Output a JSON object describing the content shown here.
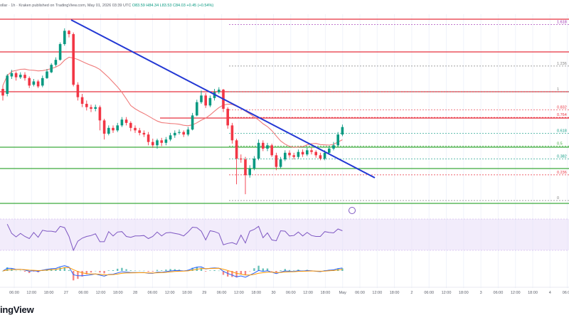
{
  "header": {
    "symbol_fragment": "ollar",
    "sep1": "· 1h ·",
    "exchange": "Kraken",
    "published": "published on TradingView.com, May 01, 2026 03:39 UTC",
    "ohlc": "O83.59 H84.34 L83.53 C84.03 +0.45 (+0.54%)"
  },
  "brand": {
    "logo_text": "ingView"
  },
  "colors": {
    "up": "#089981",
    "down": "#f23645",
    "trendline": "#2338d4",
    "resistance": "#e8313f",
    "support": "#3cab3c",
    "ma": "#ef7a7a",
    "rsi": "#7e57c2",
    "rsi_band": "#e8dcf7",
    "macd": "#2962ff",
    "signal": "#ff9800"
  },
  "fib_levels": [
    {
      "label": "1.618",
      "value": 1.618,
      "color": "#9c27b0"
    },
    {
      "label": "1.236",
      "value": 1.236,
      "color": "#808080"
    },
    {
      "label": "1",
      "value": 1,
      "color": "#808080"
    },
    {
      "label": "0.832",
      "value": 0.832,
      "color": "#e8313f"
    },
    {
      "label": "0.764",
      "value": 0.764,
      "color": "#e8313f"
    },
    {
      "label": "0.618",
      "value": 0.618,
      "color": "#089981"
    },
    {
      "label": "0.5",
      "value": 0.5,
      "color": "#3cab3c"
    },
    {
      "label": "0.382",
      "value": 0.382,
      "color": "#089981"
    },
    {
      "label": "0.236",
      "value": 0.236,
      "color": "#e8313f"
    },
    {
      "label": "0",
      "value": 0,
      "color": "#808080"
    }
  ],
  "time_axis": [
    "06:00",
    "12:00",
    "18:00",
    "27",
    "06:00",
    "12:00",
    "18:00",
    "28",
    "06:00",
    "12:00",
    "18:00",
    "29",
    "06:00",
    "12:00",
    "18:00",
    "30",
    "06:00",
    "12:00",
    "18:00",
    "May",
    "06:00",
    "12:00",
    "18:00",
    "2",
    "06:00",
    "12:00",
    "18:00",
    "3",
    "06:00",
    "12:00",
    "18:00",
    "4",
    "06:00"
  ],
  "chart_data": {
    "type": "candlestick",
    "candles": [
      [
        79.0,
        78.2,
        79.4,
        77.6
      ],
      [
        78.4,
        80.6,
        80.8,
        78.1
      ],
      [
        80.5,
        80.9,
        81.3,
        80.2
      ],
      [
        80.9,
        80.4,
        81.1,
        80.0
      ],
      [
        80.4,
        80.7,
        81.0,
        80.2
      ],
      [
        80.7,
        80.3,
        81.0,
        80.0
      ],
      [
        80.3,
        79.4,
        80.5,
        79.1
      ],
      [
        79.5,
        79.9,
        80.2,
        79.3
      ],
      [
        79.9,
        79.3,
        80.1,
        79.1
      ],
      [
        79.4,
        80.3,
        80.6,
        79.2
      ],
      [
        80.3,
        81.1,
        81.4,
        80.2
      ],
      [
        81.0,
        81.9,
        82.1,
        80.9
      ],
      [
        81.9,
        82.5,
        82.8,
        81.7
      ],
      [
        82.5,
        84.4,
        84.6,
        82.4
      ],
      [
        84.4,
        86.0,
        86.3,
        84.2
      ],
      [
        86.0,
        85.6,
        86.1,
        85.2
      ],
      [
        85.6,
        79.5,
        85.8,
        79.3
      ],
      [
        79.5,
        78.0,
        79.8,
        77.6
      ],
      [
        78.0,
        77.2,
        78.4,
        76.8
      ],
      [
        77.2,
        76.8,
        77.6,
        76.4
      ],
      [
        76.8,
        76.6,
        77.1,
        76.2
      ],
      [
        76.6,
        76.8,
        77.1,
        76.3
      ],
      [
        76.8,
        75.2,
        77.0,
        74.0
      ],
      [
        75.2,
        73.6,
        75.4,
        72.9
      ],
      [
        73.6,
        74.3,
        74.6,
        73.4
      ],
      [
        74.3,
        74.0,
        74.6,
        73.7
      ],
      [
        74.0,
        74.6,
        74.9,
        73.8
      ],
      [
        74.6,
        75.3,
        75.6,
        74.4
      ],
      [
        75.3,
        74.9,
        75.6,
        74.6
      ],
      [
        74.9,
        74.3,
        75.1,
        73.9
      ],
      [
        74.3,
        74.0,
        74.6,
        73.7
      ],
      [
        74.0,
        73.7,
        74.3,
        73.4
      ],
      [
        73.7,
        73.5,
        74.0,
        73.2
      ],
      [
        73.5,
        72.6,
        73.8,
        72.2
      ],
      [
        72.6,
        72.2,
        73.0,
        71.9
      ],
      [
        72.2,
        72.8,
        73.0,
        71.8
      ],
      [
        72.8,
        72.5,
        73.1,
        72.1
      ],
      [
        72.5,
        72.9,
        73.2,
        72.2
      ],
      [
        72.9,
        73.4,
        73.7,
        72.7
      ],
      [
        73.4,
        73.7,
        74.0,
        73.1
      ],
      [
        73.7,
        73.8,
        74.1,
        73.5
      ],
      [
        73.8,
        73.5,
        74.0,
        73.2
      ],
      [
        73.5,
        74.1,
        74.4,
        73.3
      ],
      [
        74.1,
        75.8,
        76.1,
        74.0
      ],
      [
        75.8,
        77.4,
        77.7,
        75.7
      ],
      [
        77.4,
        78.2,
        78.8,
        77.2
      ],
      [
        78.2,
        77.0,
        78.5,
        76.7
      ],
      [
        77.0,
        77.9,
        78.2,
        76.8
      ],
      [
        77.9,
        78.6,
        79.0,
        77.6
      ],
      [
        78.6,
        78.9,
        79.2,
        78.4
      ],
      [
        78.9,
        76.6,
        79.0,
        76.2
      ],
      [
        76.6,
        74.6,
        76.8,
        74.2
      ],
      [
        74.6,
        72.8,
        74.9,
        72.4
      ],
      [
        72.8,
        70.6,
        73.0,
        67.5
      ],
      [
        70.6,
        70.5,
        71.1,
        70.1
      ],
      [
        70.5,
        68.6,
        70.8,
        66.3
      ],
      [
        68.6,
        69.4,
        69.8,
        68.3
      ],
      [
        69.4,
        70.6,
        70.9,
        69.2
      ],
      [
        70.6,
        72.5,
        72.9,
        70.4
      ],
      [
        72.5,
        71.8,
        72.8,
        71.5
      ],
      [
        71.8,
        72.2,
        72.5,
        71.5
      ],
      [
        72.2,
        71.0,
        72.4,
        70.8
      ],
      [
        71.0,
        69.6,
        71.3,
        69.2
      ],
      [
        69.6,
        70.5,
        70.8,
        69.4
      ],
      [
        70.5,
        71.3,
        71.6,
        70.3
      ],
      [
        71.3,
        71.0,
        71.6,
        70.7
      ],
      [
        71.0,
        70.8,
        71.3,
        70.5
      ],
      [
        70.8,
        71.4,
        71.7,
        70.6
      ],
      [
        71.4,
        71.1,
        71.7,
        70.8
      ],
      [
        71.1,
        71.6,
        71.9,
        70.9
      ],
      [
        71.6,
        71.4,
        71.9,
        71.1
      ],
      [
        71.4,
        71.0,
        71.6,
        70.7
      ],
      [
        71.0,
        70.6,
        71.3,
        70.4
      ],
      [
        70.6,
        71.3,
        71.6,
        70.4
      ],
      [
        71.3,
        71.8,
        72.1,
        71.1
      ],
      [
        71.8,
        72.2,
        72.6,
        71.6
      ],
      [
        72.2,
        73.5,
        73.8,
        72.0
      ],
      [
        73.5,
        74.4,
        74.7,
        73.3
      ]
    ],
    "candle_axis": "unlabeled"
  }
}
